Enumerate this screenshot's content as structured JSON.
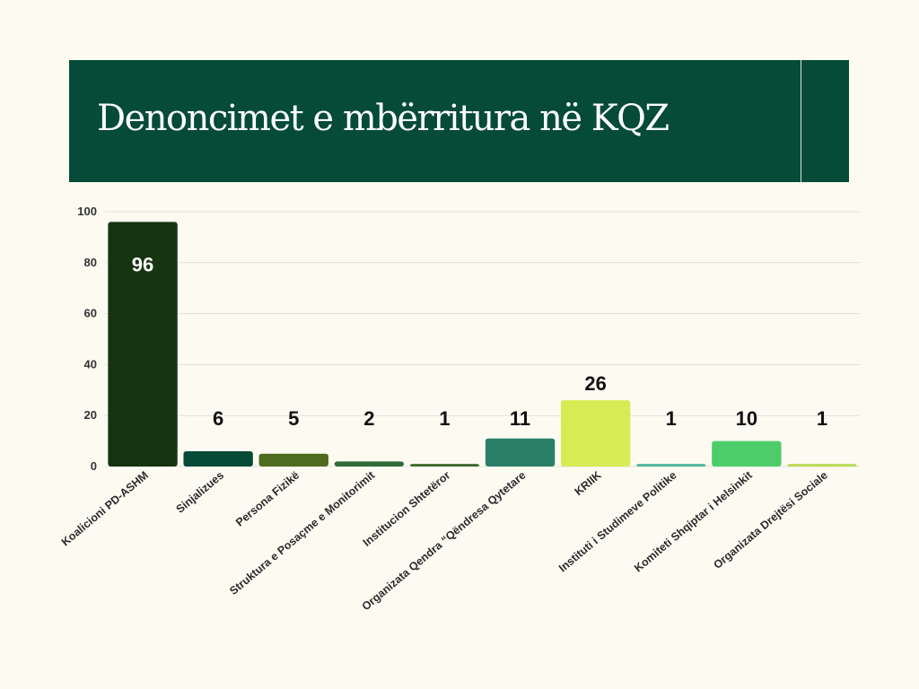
{
  "header": {
    "title": "Denoncimet e mbërritura në KQZ"
  },
  "chart_data": {
    "type": "bar",
    "title": "Denoncimet e mbërritura në KQZ",
    "xlabel": "",
    "ylabel": "",
    "ylim": [
      0,
      100
    ],
    "yticks": [
      0,
      20,
      40,
      60,
      80,
      100
    ],
    "grid": true,
    "categories": [
      "Koalicioni PD-ASHM",
      "Sinjalizues",
      "Persona Fizikë",
      "Struktura e Posaçme e Monitorimit",
      "Institucion Shtetëror",
      "Organizata Qendra “Qëndresa Qytetare",
      "KRIIK",
      "Instituti i Studimeve Politike",
      "Komiteti Shqiptar i Helsinkit",
      "Organizata Drejtësi Sociale"
    ],
    "values": [
      96,
      6,
      5,
      2,
      1,
      11,
      26,
      1,
      10,
      1
    ],
    "colors": [
      "#173410",
      "#054b37",
      "#4f6b1d",
      "#2f6b39",
      "#3f6a2e",
      "#2a8067",
      "#d5ec55",
      "#4fb49a",
      "#4ccd6a",
      "#b9da55"
    ],
    "label_colors": [
      "#ffffff",
      "#111111",
      "#111111",
      "#111111",
      "#111111",
      "#111111",
      "#111111",
      "#111111",
      "#111111",
      "#111111"
    ]
  }
}
